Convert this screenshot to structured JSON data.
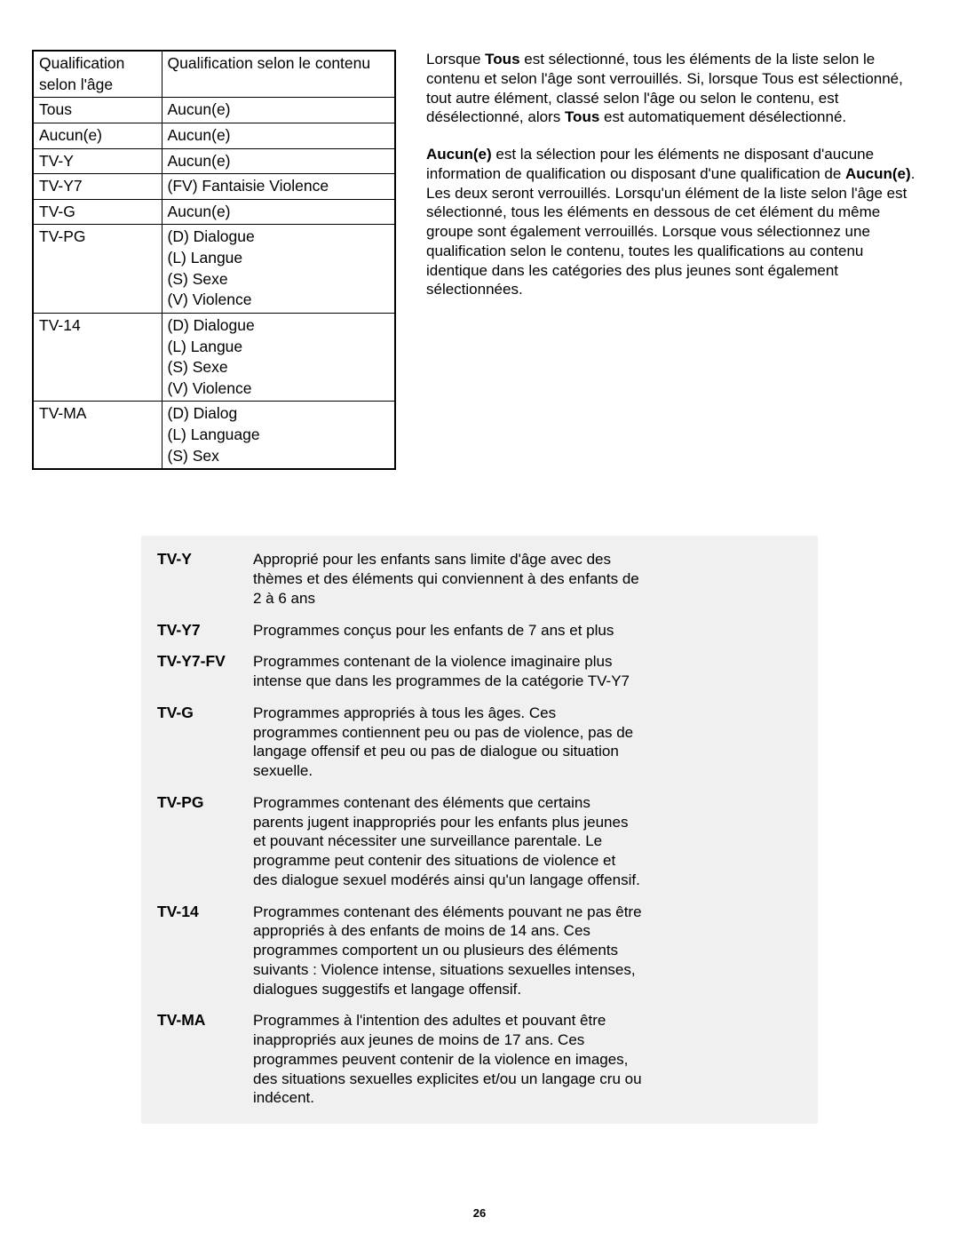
{
  "table": {
    "header": {
      "c1": "Qualification selon l'âge",
      "c2": "Qualification selon le contenu"
    },
    "rows": [
      {
        "c1": "Tous",
        "c2": "Aucun(e)"
      },
      {
        "c1": "Aucun(e)",
        "c2": "Aucun(e)"
      },
      {
        "c1": "TV-Y",
        "c2": "Aucun(e)"
      },
      {
        "c1": "TV-Y7",
        "c2": "(FV) Fantaisie Violence"
      },
      {
        "c1": "TV-G",
        "c2": "Aucun(e)"
      },
      {
        "c1": "TV-PG",
        "c2": "(D) Dialogue\n(L) Langue\n(S) Sexe\n(V) Violence"
      },
      {
        "c1": "TV-14",
        "c2": "(D) Dialogue\n(L) Langue\n(S) Sexe\n(V) Violence"
      },
      {
        "c1": "TV-MA",
        "c2": "(D) Dialog\n(L) Language\n(S) Sex"
      }
    ]
  },
  "paragraphs": {
    "p1_pre": "Lorsque ",
    "p1_b1": "Tous",
    "p1_mid": " est sélectionné, tous les éléments de la liste selon le contenu et selon l'âge sont verrouillés. Si, lorsque Tous est sélectionné, tout autre élément, classé selon l'âge ou selon le contenu, est désélectionné, alors ",
    "p1_b2": "Tous",
    "p1_post": " est automatiquement désélectionné.",
    "p2_b1": "Aucun(e)",
    "p2_mid": " est la sélection pour les éléments ne disposant d'aucune information de qualification ou disposant d'une qualification de ",
    "p2_b2": "Aucun(e)",
    "p2_post": ". Les deux seront verrouillés. Lorsqu'un élément de la liste selon l'âge est sélectionné, tous les éléments en dessous de cet élément du même groupe sont également verrouillés. Lorsque vous sélectionnez une qualification selon le contenu, toutes les qualifications au contenu identique dans les catégories des plus jeunes sont également sélectionnées."
  },
  "ratings": [
    {
      "label": "TV-Y",
      "desc": "Approprié pour les enfants sans limite d'âge avec des thèmes et des éléments qui conviennent à des enfants de 2 à 6 ans"
    },
    {
      "label": "TV-Y7",
      "desc": "Programmes conçus pour les enfants de 7 ans et plus"
    },
    {
      "label": "TV-Y7-FV",
      "desc": "Programmes contenant de la violence imaginaire plus intense que dans les programmes de la catégorie TV-Y7"
    },
    {
      "label": "TV-G",
      "desc": "Programmes appropriés à tous les âges. Ces programmes contiennent peu ou pas de violence, pas de langage offensif et peu ou pas de dialogue ou situation sexuelle."
    },
    {
      "label": "TV-PG",
      "desc": "Programmes contenant des éléments que certains parents jugent inappropriés pour les enfants plus jeunes et pouvant nécessiter une surveillance parentale. Le programme peut contenir des situations de violence et des dialogue sexuel modérés ainsi qu'un langage offensif."
    },
    {
      "label": "TV-14",
      "desc": "Programmes contenant des éléments pouvant ne pas être appropriés à des enfants de moins de 14 ans. Ces programmes comportent un ou plusieurs des éléments suivants : Violence intense, situations sexuelles intenses, dialogues suggestifs et langage offensif."
    },
    {
      "label": "TV-MA",
      "desc": "Programmes à l'intention des adultes et pouvant être inappropriés aux jeunes de moins de 17 ans. Ces programmes peuvent contenir de la violence en images, des situations sexuelles explicites et/ou un langage cru ou indécent."
    }
  ],
  "page_number": "26"
}
